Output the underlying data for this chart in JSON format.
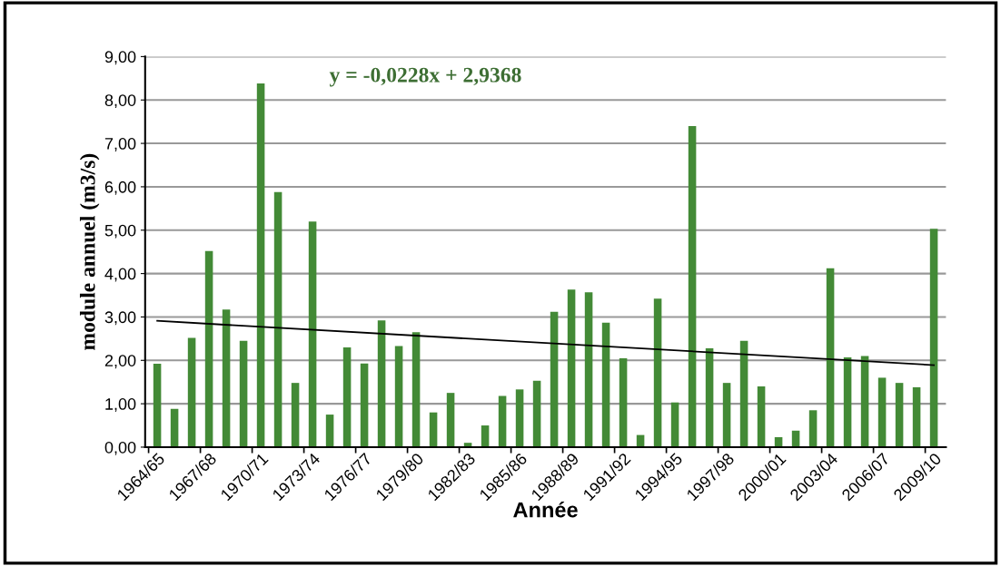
{
  "chart_data": {
    "type": "bar",
    "xlabel": "Année",
    "ylabel": "module annuel (m3/s)",
    "categories": [
      "1964/65",
      null,
      null,
      "1967/68",
      null,
      null,
      "1970/71",
      null,
      null,
      "1973/74",
      null,
      null,
      "1976/77",
      null,
      null,
      "1979/80",
      null,
      null,
      "1982/83",
      null,
      null,
      "1985/86",
      null,
      null,
      "1988/89",
      null,
      null,
      "1991/92",
      null,
      null,
      "1994/95",
      null,
      null,
      "1997/98",
      null,
      null,
      "2000/01",
      null,
      null,
      "2003/04",
      null,
      null,
      "2006/07",
      null,
      null,
      "2009/10"
    ],
    "series": [
      {
        "color": "#438a36",
        "values": [
          1.92,
          0.88,
          2.52,
          4.52,
          3.17,
          2.45,
          8.38,
          5.88,
          1.48,
          5.2,
          0.75,
          2.3,
          1.93,
          2.92,
          2.33,
          2.65,
          0.8,
          1.25,
          0.1,
          0.5,
          1.18,
          1.33,
          1.53,
          3.12,
          3.63,
          3.57,
          2.87,
          2.05,
          0.28,
          3.42,
          1.03,
          7.4,
          2.28,
          1.48,
          2.45,
          1.4,
          0.23,
          0.38,
          0.85,
          4.12,
          2.07,
          2.1,
          1.6,
          1.48,
          1.38,
          5.03
        ]
      },
      {
        "type": "line",
        "color": "#000000",
        "x": [
          "1964/65",
          "2009/10"
        ],
        "values": [
          2.91,
          1.89
        ]
      }
    ],
    "ylim": [
      0,
      9
    ],
    "yticks": [
      {
        "value": 0,
        "label": "0,00"
      },
      {
        "value": 1,
        "label": "1,00"
      },
      {
        "value": 2,
        "label": "2,00"
      },
      {
        "value": 3,
        "label": "3,00"
      },
      {
        "value": 4,
        "label": "4,00"
      },
      {
        "value": 5,
        "label": "5,00"
      },
      {
        "value": 6,
        "label": "6,00"
      },
      {
        "value": 7,
        "label": "7,00"
      },
      {
        "value": 8,
        "label": "8,00"
      },
      {
        "value": 9,
        "label": "9,00"
      }
    ],
    "grid": "y",
    "legend": false,
    "annotations": [
      "y = -0,0228x + 2,9368"
    ]
  }
}
